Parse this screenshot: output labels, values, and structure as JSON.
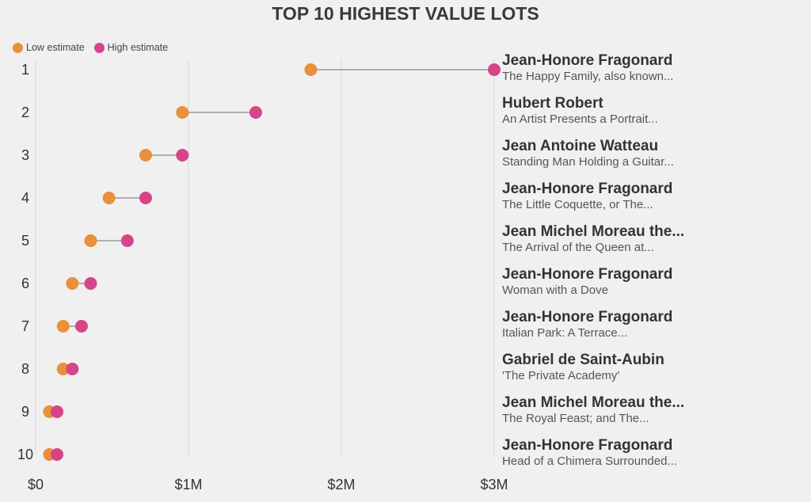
{
  "title": "TOP 10 HIGHEST VALUE LOTS",
  "legend": [
    {
      "label": "Low estimate",
      "color": "#e8903a"
    },
    {
      "label": "High estimate",
      "color": "#d6448a"
    }
  ],
  "chart_data": {
    "type": "dumbbell",
    "title": "TOP 10 HIGHEST VALUE LOTS",
    "xlim": [
      0,
      3000000
    ],
    "xticks": [
      {
        "value": 0,
        "label": "$0"
      },
      {
        "value": 1000000,
        "label": "$1M"
      },
      {
        "value": 2000000,
        "label": "$2M"
      },
      {
        "value": 3000000,
        "label": "$3M"
      }
    ],
    "grid": true,
    "legend_position": "top-left",
    "series": [
      {
        "name": "Low estimate",
        "color": "#e8903a"
      },
      {
        "name": "High estimate",
        "color": "#d6448a"
      }
    ],
    "rows": [
      {
        "rank": "1",
        "artist": "Jean-Honore Fragonard",
        "work": "The Happy Family, also known...",
        "low": 1800000,
        "high": 3000000
      },
      {
        "rank": "2",
        "artist": "Hubert Robert",
        "work": "An Artist Presents a Portrait...",
        "low": 960000,
        "high": 1440000
      },
      {
        "rank": "3",
        "artist": "Jean Antoine Watteau",
        "work": "Standing Man Holding a Guitar...",
        "low": 720000,
        "high": 960000
      },
      {
        "rank": "4",
        "artist": "Jean-Honore Fragonard",
        "work": "The Little Coquette, or The...",
        "low": 480000,
        "high": 720000
      },
      {
        "rank": "5",
        "artist": "Jean Michel Moreau the...",
        "work": "The Arrival of the Queen at...",
        "low": 360000,
        "high": 600000
      },
      {
        "rank": "6",
        "artist": "Jean-Honore Fragonard",
        "work": "Woman with a Dove",
        "low": 240000,
        "high": 360000
      },
      {
        "rank": "7",
        "artist": "Jean-Honore Fragonard",
        "work": "Italian Park: A Terrace...",
        "low": 180000,
        "high": 300000
      },
      {
        "rank": "8",
        "artist": "Gabriel de Saint-Aubin",
        "work": "'The Private Academy'",
        "low": 180000,
        "high": 240000
      },
      {
        "rank": "9",
        "artist": "Jean Michel Moreau the...",
        "work": "The Royal Feast; and The...",
        "low": 90000,
        "high": 140000
      },
      {
        "rank": "10",
        "artist": "Jean-Honore Fragonard",
        "work": "Head of a Chimera Surrounded...",
        "low": 90000,
        "high": 140000
      }
    ]
  }
}
